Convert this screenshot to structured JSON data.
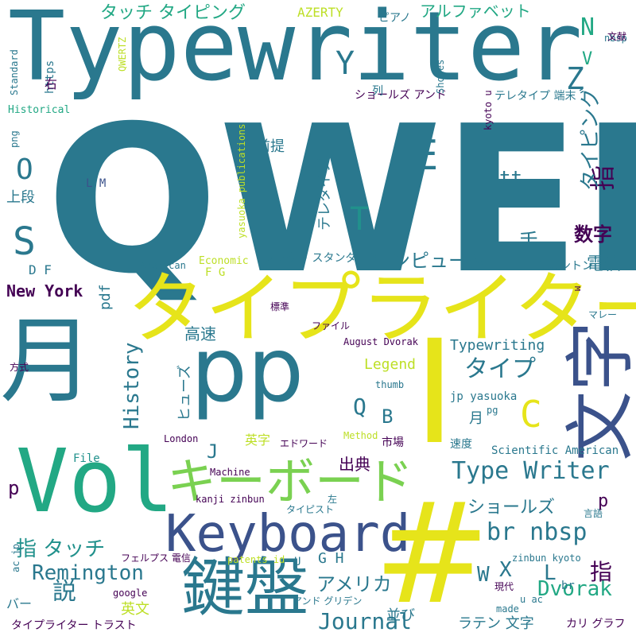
{
  "palette": {
    "purple": "#440154",
    "indigo": "#3b528b",
    "blue": "#33638d",
    "teal": "#2a788e",
    "teal2": "#21918c",
    "green": "#22a884",
    "lime": "#7ad151",
    "yellow": "#e6e41a",
    "yellow2": "#bddf26"
  },
  "words": [
    {
      "text": "QWERTY",
      "color": "teal"
    },
    {
      "text": "Typewriter",
      "color": "teal"
    },
    {
      "text": "タイプライター",
      "color": "yellow"
    },
    {
      "text": "月",
      "color": "teal"
    },
    {
      "text": "pp",
      "color": "teal"
    },
    {
      "text": "Vol",
      "color": "green"
    },
    {
      "text": "キーボード",
      "color": "lime"
    },
    {
      "text": "Keyboard",
      "color": "indigo"
    },
    {
      "text": "鍵盤",
      "color": "teal"
    },
    {
      "text": "I",
      "color": "yellow"
    },
    {
      "text": "文字",
      "color": "indigo"
    },
    {
      "text": "#",
      "color": "yellow"
    },
    {
      "text": "Type Writer",
      "color": "teal"
    },
    {
      "text": "br nbsp",
      "color": "teal"
    },
    {
      "text": "Remington",
      "color": "teal"
    },
    {
      "text": "Journal",
      "color": "teal"
    },
    {
      "text": "New York",
      "color": "purple"
    },
    {
      "text": "History",
      "color": "teal"
    },
    {
      "text": "Typewriting",
      "color": "teal"
    },
    {
      "text": "Dvorak",
      "color": "green"
    },
    {
      "text": "アメリカ",
      "color": "teal"
    },
    {
      "text": "コンピュータ",
      "color": "teal"
    },
    {
      "text": "数字",
      "color": "purple"
    },
    {
      "text": "タイプ",
      "color": "teal"
    },
    {
      "text": "ショールズ",
      "color": "teal"
    },
    {
      "text": "指 タッチ",
      "color": "teal2"
    },
    {
      "text": "説",
      "color": "teal"
    },
    {
      "text": "指",
      "color": "purple"
    },
    {
      "text": "指",
      "color": "purple"
    },
    {
      "text": "タッチ タイピング",
      "color": "green"
    },
    {
      "text": "アルファベット",
      "color": "green"
    },
    {
      "text": "AZERTY",
      "color": "yellow2"
    },
    {
      "text": "ピアノ",
      "color": "teal"
    },
    {
      "text": "nbsp",
      "color": "teal"
    },
    {
      "text": "文献",
      "color": "purple"
    },
    {
      "text": "Standard",
      "color": "teal"
    },
    {
      "text": "https",
      "color": "teal"
    },
    {
      "text": "QWERTZ",
      "color": "yellow2"
    },
    {
      "text": "右",
      "color": "purple"
    },
    {
      "text": "ショールズ アンド",
      "color": "purple"
    },
    {
      "text": "列",
      "color": "teal"
    },
    {
      "text": "Sholes",
      "color": "teal"
    },
    {
      "text": "テレタイプ 端末",
      "color": "teal"
    },
    {
      "text": "Historical",
      "color": "green"
    },
    {
      "text": "タイピング",
      "color": "teal"
    },
    {
      "text": "png",
      "color": "teal"
    },
    {
      "text": "kyoto u",
      "color": "purple"
    },
    {
      "text": "yasuoka publications",
      "color": "yellow2"
    },
    {
      "text": "テレタイプ",
      "color": "teal"
    },
    {
      "text": "前提",
      "color": "teal"
    },
    {
      "text": "上段",
      "color": "teal"
    },
    {
      "text": "L M",
      "color": "indigo"
    },
    {
      "text": "tt",
      "color": "teal"
    },
    {
      "text": "手",
      "color": "teal"
    },
    {
      "text": "電信",
      "color": "teal"
    },
    {
      "text": "レミントン",
      "color": "teal"
    },
    {
      "text": "Economic",
      "color": "yellow2"
    },
    {
      "text": "ファクト スタンダード",
      "color": "teal"
    },
    {
      "text": "American",
      "color": "teal"
    },
    {
      "text": "D F",
      "color": "teal"
    },
    {
      "text": "F G",
      "color": "yellow2"
    },
    {
      "text": "pdf",
      "color": "teal"
    },
    {
      "text": "標準",
      "color": "purple"
    },
    {
      "text": "ファイル",
      "color": "purple"
    },
    {
      "text": "高速",
      "color": "teal"
    },
    {
      "text": "August Dvorak",
      "color": "purple"
    },
    {
      "text": "マレー",
      "color": "teal"
    },
    {
      "text": "方式",
      "color": "purple"
    },
    {
      "text": "ヒューズ",
      "color": "teal"
    },
    {
      "text": "Legend",
      "color": "yellow2"
    },
    {
      "text": "thumb",
      "color": "teal"
    },
    {
      "text": "jp yasuoka",
      "color": "teal"
    },
    {
      "text": "pg",
      "color": "teal"
    },
    {
      "text": "月",
      "color": "teal"
    },
    {
      "text": "London",
      "color": "purple"
    },
    {
      "text": "英字",
      "color": "yellow2"
    },
    {
      "text": "エドワード",
      "color": "purple"
    },
    {
      "text": "Method",
      "color": "yellow2"
    },
    {
      "text": "市場",
      "color": "purple"
    },
    {
      "text": "速度",
      "color": "teal"
    },
    {
      "text": "Scientific American",
      "color": "teal"
    },
    {
      "text": "File",
      "color": "teal2"
    },
    {
      "text": "出典",
      "color": "purple"
    },
    {
      "text": "Machine",
      "color": "purple"
    },
    {
      "text": "kanji zinbun",
      "color": "purple"
    },
    {
      "text": "タイピスト",
      "color": "teal"
    },
    {
      "text": "左",
      "color": "teal"
    },
    {
      "text": "言語",
      "color": "teal"
    },
    {
      "text": "フェルプス 電信",
      "color": "purple"
    },
    {
      "text": "patents id",
      "color": "yellow2"
    },
    {
      "text": "zinbun kyoto",
      "color": "teal"
    },
    {
      "text": "現代",
      "color": "purple"
    },
    {
      "text": "google",
      "color": "purple"
    },
    {
      "text": "バー",
      "color": "teal"
    },
    {
      "text": "英文",
      "color": "yellow2"
    },
    {
      "text": "アンド グリデン",
      "color": "teal"
    },
    {
      "text": "並び",
      "color": "teal"
    },
    {
      "text": "ラテン 文字",
      "color": "teal"
    },
    {
      "text": "タイプライター トラスト",
      "color": "purple"
    },
    {
      "text": "made",
      "color": "teal"
    },
    {
      "text": "カリ グラフ",
      "color": "purple"
    },
    {
      "text": "u ac",
      "color": "teal"
    },
    {
      "text": "ac jp",
      "color": "teal"
    },
    {
      "text": "br",
      "color": "teal"
    },
    {
      "text": "Y",
      "color": "teal"
    },
    {
      "text": "N",
      "color": "green"
    },
    {
      "text": "V",
      "color": "green"
    },
    {
      "text": "Z",
      "color": "teal"
    },
    {
      "text": "E",
      "color": "teal"
    },
    {
      "text": "O",
      "color": "teal"
    },
    {
      "text": "T",
      "color": "teal2"
    },
    {
      "text": "S",
      "color": "teal"
    },
    {
      "text": "C",
      "color": "yellow"
    },
    {
      "text": "Q",
      "color": "teal"
    },
    {
      "text": "B",
      "color": "teal"
    },
    {
      "text": "J",
      "color": "teal"
    },
    {
      "text": "p",
      "color": "purple"
    },
    {
      "text": "p",
      "color": "purple"
    },
    {
      "text": "L",
      "color": "teal"
    },
    {
      "text": "W",
      "color": "teal"
    },
    {
      "text": "X",
      "color": "teal"
    },
    {
      "text": "U",
      "color": "teal"
    },
    {
      "text": "G H",
      "color": "teal"
    },
    {
      "text": "M",
      "color": "purple"
    }
  ]
}
